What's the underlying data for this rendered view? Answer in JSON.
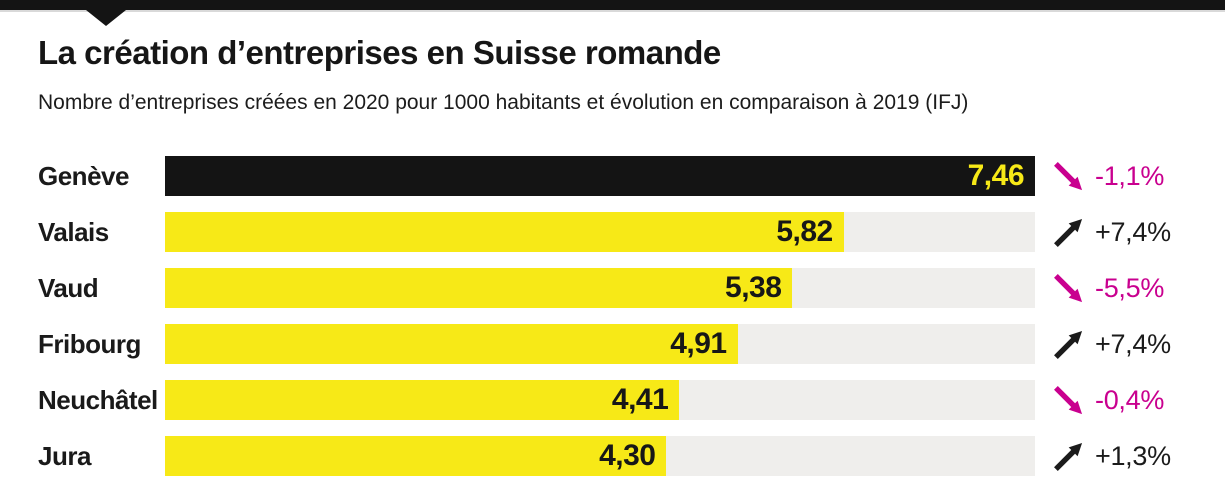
{
  "header": {
    "title": "La création d’entreprises en Suisse romande",
    "subtitle": "Nombre d’entreprises créées en 2020 pour 1000 habitants et évolution en comparaison à 2019 (IFJ)"
  },
  "colors": {
    "yellow": "#f7e917",
    "black_bar": "#141414",
    "track_gray": "#efeeec",
    "magenta": "#c9008f",
    "text_dark": "#1a1a1a"
  },
  "chart_data": {
    "type": "bar",
    "orientation": "horizontal",
    "title": "La création d’entreprises en Suisse romande",
    "subtitle": "Nombre d’entreprises créées en 2020 pour 1000 habitants et évolution en comparaison à 2019 (IFJ)",
    "categories": [
      "Genève",
      "Valais",
      "Vaud",
      "Fribourg",
      "Neuchâtel",
      "Jura"
    ],
    "values": [
      7.46,
      5.82,
      5.38,
      4.91,
      4.41,
      4.3
    ],
    "value_labels": [
      "7,46",
      "5,82",
      "5,38",
      "4,91",
      "4,41",
      "4,30"
    ],
    "series": [
      {
        "name": "Évolution vs 2019",
        "change_labels": [
          "-1,1%",
          "+7,4%",
          "-5,5%",
          "+7,4%",
          "-0,4%",
          "+1,3%"
        ],
        "change_directions": [
          "down",
          "up",
          "down",
          "up",
          "down",
          "up"
        ]
      }
    ],
    "xlim": [
      0,
      7.46
    ],
    "highlight_index": 0,
    "grid": false,
    "legend": false,
    "xlabel": "",
    "ylabel": ""
  }
}
